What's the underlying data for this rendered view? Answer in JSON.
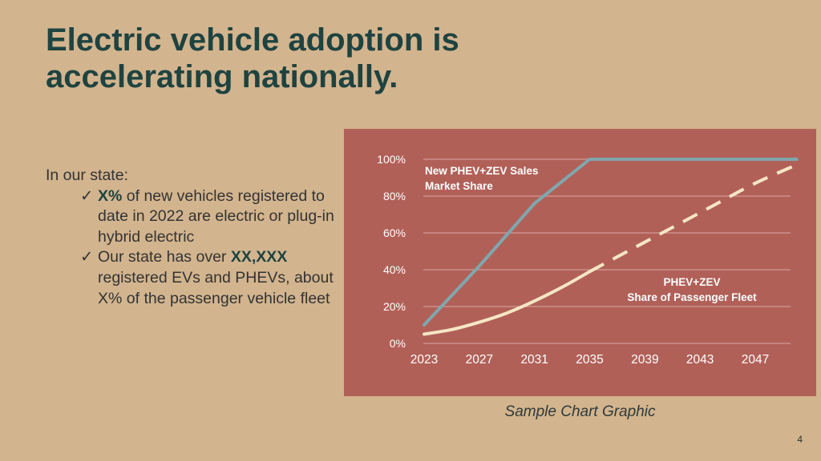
{
  "slide": {
    "title": "Electric vehicle adoption is accelerating nationally.",
    "intro": "In our state:",
    "bullet1": {
      "bold": "X%",
      "text": " of new vehicles registered to date in 2022 are electric or plug-in hybrid electric"
    },
    "bullet2": {
      "pre": "Our state has over ",
      "bold": "XX,XXX",
      "text": " registered EVs and PHEVs, about X% of the passenger vehicle fleet"
    },
    "caption": "Sample Chart Graphic",
    "page_number": "4",
    "check_icon": "✓"
  },
  "colors": {
    "background": "#D2B48E",
    "chart_background": "#B16058",
    "title": "#1E4340",
    "sales_line": "#7FA7AD",
    "fleet_line": "#F5E6C4",
    "gridline": "#D9A9A3"
  },
  "chart_data": {
    "type": "line",
    "title": "",
    "xlabel": "",
    "ylabel": "",
    "x_ticks": [
      2023,
      2027,
      2031,
      2035,
      2039,
      2043,
      2047
    ],
    "xlim": [
      2023,
      2050
    ],
    "y_ticks": [
      "0%",
      "20%",
      "40%",
      "60%",
      "80%",
      "100%"
    ],
    "ylim": [
      0,
      100
    ],
    "grid": true,
    "series": [
      {
        "name": "New PHEV+ZEV Sales Market Share",
        "label_lines": [
          "New PHEV+ZEV Sales",
          "Market Share"
        ],
        "style": "solid",
        "x": [
          2023,
          2027,
          2031,
          2035,
          2050
        ],
        "y": [
          10,
          42,
          76,
          100,
          100
        ]
      },
      {
        "name": "PHEV+ZEV Share of Passenger Fleet",
        "label_lines": [
          "PHEV+ZEV",
          "Share of Passenger Fleet"
        ],
        "style": "solid-then-dashed",
        "dash_from": 2035,
        "x": [
          2023,
          2025,
          2027,
          2029,
          2031,
          2033,
          2035,
          2038,
          2041,
          2044,
          2047,
          2050
        ],
        "y": [
          5,
          7.5,
          11.5,
          16.5,
          23,
          30.5,
          39,
          51,
          63,
          75,
          87,
          97
        ]
      }
    ]
  }
}
